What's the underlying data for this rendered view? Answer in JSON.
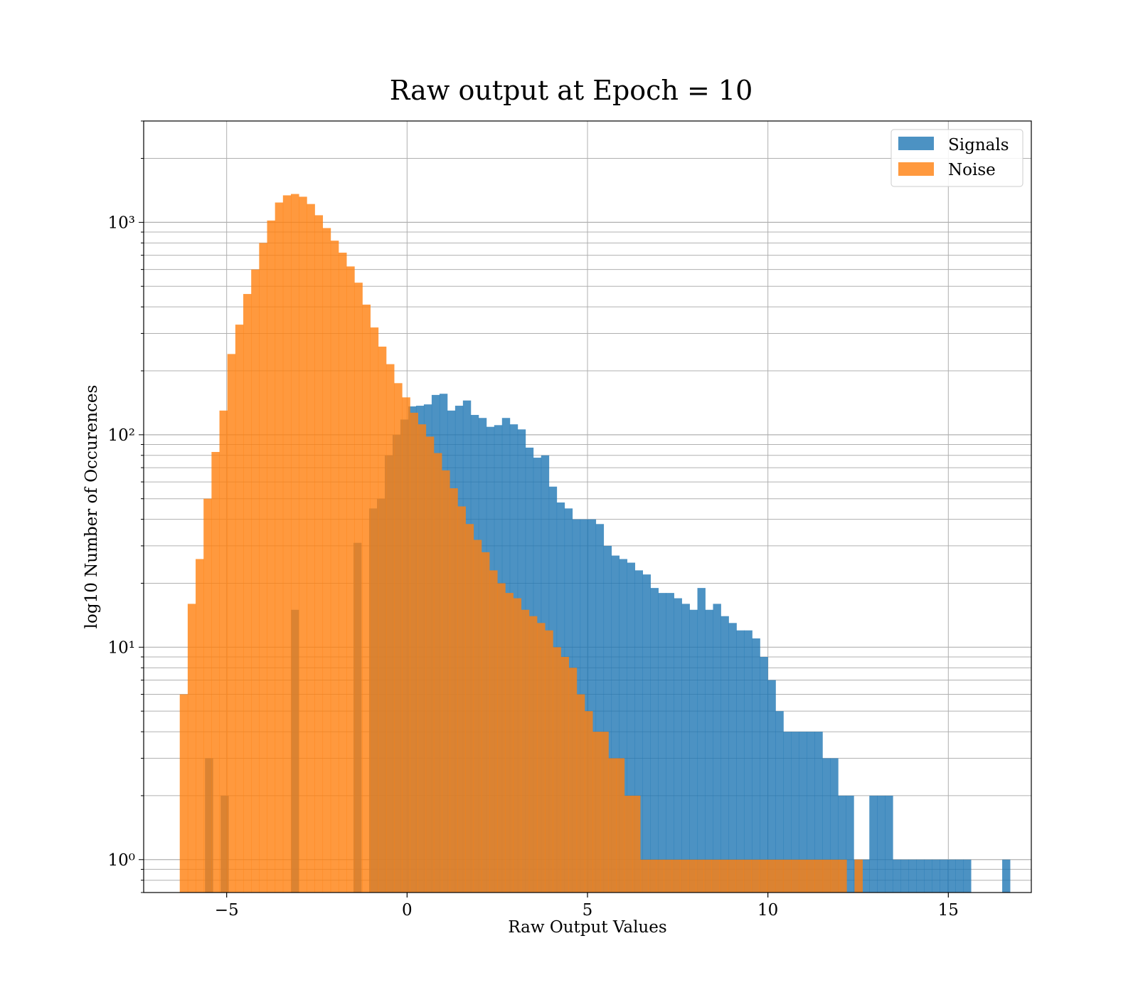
{
  "chart_data": {
    "type": "bar",
    "histogram": true,
    "title": "Raw output at Epoch = 10",
    "xlabel": "Raw Output Values",
    "ylabel": "log10 Number of Occurences",
    "xlim": [
      -7.3,
      17.3
    ],
    "ylim": [
      0.7,
      3000
    ],
    "yscale": "log",
    "grid": true,
    "legend_position": "top-right",
    "x_ticks": [
      {
        "value": -5,
        "label": "−5"
      },
      {
        "value": 0,
        "label": "0"
      },
      {
        "value": 5,
        "label": "5"
      },
      {
        "value": 10,
        "label": "10"
      },
      {
        "value": 15,
        "label": "15"
      }
    ],
    "y_ticks": [
      {
        "value": 1,
        "label": "10⁰"
      },
      {
        "value": 10,
        "label": "10¹"
      },
      {
        "value": 100,
        "label": "10²"
      },
      {
        "value": 1000,
        "label": "10³"
      }
    ],
    "series": [
      {
        "name": "Signals",
        "color": "#1f77b4",
        "opacity": 0.8,
        "bin_start": -5.6,
        "bin_width": 0.2166,
        "counts": [
          3,
          0,
          2,
          0,
          0,
          0,
          0,
          0,
          0,
          0,
          0,
          15,
          0,
          0,
          0,
          0,
          0,
          0,
          0,
          31,
          0,
          45,
          50,
          80,
          100,
          118,
          136,
          137,
          139,
          154,
          156,
          130,
          137,
          145,
          124,
          120,
          109,
          111,
          120,
          112,
          106,
          87,
          78,
          80,
          57,
          48,
          45,
          40,
          40,
          40,
          38,
          30,
          27,
          26,
          25,
          23,
          22,
          19,
          18,
          18,
          17,
          16,
          15,
          19,
          15,
          16,
          14,
          13,
          12,
          12,
          11,
          9,
          7,
          5,
          4,
          4,
          4,
          4,
          4,
          3,
          3,
          2,
          2,
          1,
          1,
          2,
          2,
          2,
          1,
          1,
          1,
          1,
          1,
          1,
          1,
          1,
          1,
          1,
          0,
          0,
          0,
          0,
          1
        ]
      },
      {
        "name": "Noise",
        "color": "#ff7f0e",
        "opacity": 0.8,
        "bin_start": -6.3,
        "bin_width": 0.22,
        "counts": [
          6,
          16,
          26,
          50,
          83,
          130,
          240,
          330,
          460,
          600,
          800,
          1020,
          1240,
          1340,
          1360,
          1320,
          1220,
          1080,
          940,
          820,
          720,
          620,
          520,
          410,
          320,
          260,
          215,
          175,
          150,
          127,
          112,
          98,
          82,
          68,
          56,
          46,
          38,
          32,
          28,
          23,
          20,
          18,
          17,
          15,
          14,
          13,
          12,
          10,
          9,
          8,
          6,
          5,
          4,
          4,
          3,
          3,
          2,
          2,
          1,
          1,
          1,
          1,
          1,
          1,
          1,
          1,
          1,
          1,
          1,
          1,
          1,
          1,
          1,
          1,
          1,
          1,
          1,
          1,
          1,
          1,
          1,
          1,
          1,
          1,
          0,
          1
        ]
      }
    ]
  }
}
